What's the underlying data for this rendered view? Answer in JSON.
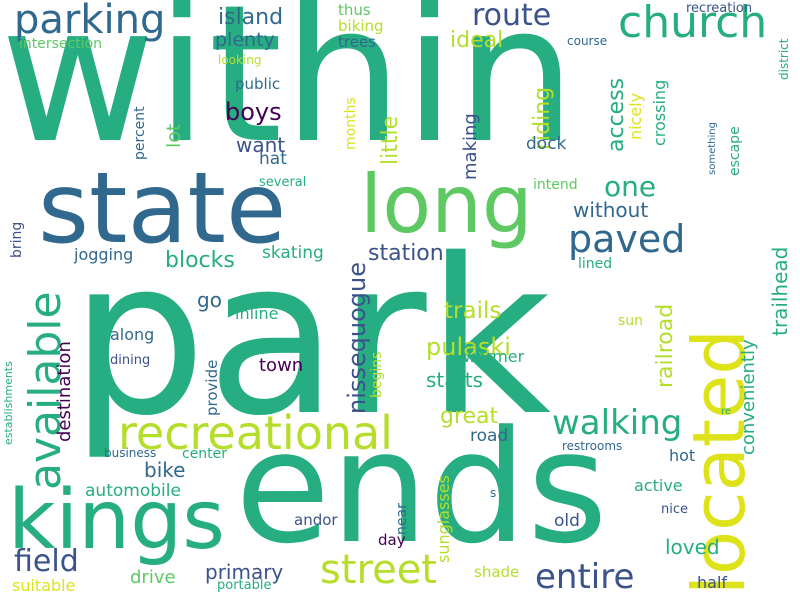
{
  "words": [
    {
      "text": "within",
      "color": "#26ad81"
    },
    {
      "text": "park",
      "color": "#26ad81"
    },
    {
      "text": "ends",
      "color": "#26ad81"
    },
    {
      "text": "state",
      "color": "#31688e"
    },
    {
      "text": "long",
      "color": "#5ec962"
    },
    {
      "text": "located",
      "color": "#dde318"
    },
    {
      "text": "kings",
      "color": "#26ad81"
    },
    {
      "text": "recreational",
      "color": "#b5de2b"
    },
    {
      "text": "street",
      "color": "#b5de2b"
    },
    {
      "text": "parking",
      "color": "#31688e"
    },
    {
      "text": "church",
      "color": "#26ad81"
    },
    {
      "text": "route",
      "color": "#3b528b"
    },
    {
      "text": "paved",
      "color": "#31688e"
    },
    {
      "text": "walking",
      "color": "#26ad81"
    },
    {
      "text": "available",
      "color": "#26ad81"
    },
    {
      "text": "entire",
      "color": "#3b528b"
    },
    {
      "text": "field",
      "color": "#3b528b"
    },
    {
      "text": "one",
      "color": "#26ad81"
    },
    {
      "text": "island",
      "color": "#31688e"
    },
    {
      "text": "plenty",
      "color": "#31688e"
    },
    {
      "text": "ideal",
      "color": "#b5de2b"
    },
    {
      "text": "intersection",
      "color": "#5ec962"
    },
    {
      "text": "thus",
      "color": "#5ec962"
    },
    {
      "text": "biking",
      "color": "#b5de2b"
    },
    {
      "text": "trees",
      "color": "#31688e"
    },
    {
      "text": "recreation",
      "color": "#3b528b"
    },
    {
      "text": "course",
      "color": "#31688e"
    },
    {
      "text": "looking",
      "color": "#b5de2b"
    },
    {
      "text": "district",
      "color": "#26ad81"
    },
    {
      "text": "public",
      "color": "#31688e"
    },
    {
      "text": "boys",
      "color": "#440154"
    },
    {
      "text": "want",
      "color": "#3b528b"
    },
    {
      "text": "hat",
      "color": "#31688e"
    },
    {
      "text": "several",
      "color": "#26ad81"
    },
    {
      "text": "riding",
      "color": "#b5de2b"
    },
    {
      "text": "little",
      "color": "#b5de2b"
    },
    {
      "text": "making",
      "color": "#3b528b"
    },
    {
      "text": "access",
      "color": "#26ad81"
    },
    {
      "text": "nicely",
      "color": "#dde318"
    },
    {
      "text": "crossing",
      "color": "#26ad81"
    },
    {
      "text": "dock",
      "color": "#31688e"
    },
    {
      "text": "intend",
      "color": "#5ec962"
    },
    {
      "text": "escape",
      "color": "#26ad81"
    },
    {
      "text": "something",
      "color": "#31688e"
    },
    {
      "text": "without",
      "color": "#31688e"
    },
    {
      "text": "blocks",
      "color": "#26ad81"
    },
    {
      "text": "skating",
      "color": "#26ad81"
    },
    {
      "text": "station",
      "color": "#3b528b"
    },
    {
      "text": "jogging",
      "color": "#31688e"
    },
    {
      "text": "lined",
      "color": "#26ad81"
    },
    {
      "text": "trailhead",
      "color": "#26ad81"
    },
    {
      "text": "conveniently",
      "color": "#26ad81"
    },
    {
      "text": "railroad",
      "color": "#b5de2b"
    },
    {
      "text": "trails",
      "color": "#b5de2b"
    },
    {
      "text": "pulaski",
      "color": "#b5de2b"
    },
    {
      "text": "nissequogue",
      "color": "#3b528b"
    },
    {
      "text": "starts",
      "color": "#26ad81"
    },
    {
      "text": "warmer",
      "color": "#26ad81"
    },
    {
      "text": "begins",
      "color": "#b5de2b"
    },
    {
      "text": "great",
      "color": "#b5de2b"
    },
    {
      "text": "road",
      "color": "#31688e"
    },
    {
      "text": "sun",
      "color": "#b5de2b"
    },
    {
      "text": "re",
      "color": "#26ad81"
    },
    {
      "text": "restrooms",
      "color": "#31688e"
    },
    {
      "text": "go",
      "color": "#31688e"
    },
    {
      "text": "inline",
      "color": "#26ad81"
    },
    {
      "text": "along",
      "color": "#31688e"
    },
    {
      "text": "town",
      "color": "#440154"
    },
    {
      "text": "provide",
      "color": "#31688e"
    },
    {
      "text": "dining",
      "color": "#3b528b"
    },
    {
      "text": "destination",
      "color": "#440154"
    },
    {
      "text": "percent",
      "color": "#31688e"
    },
    {
      "text": "lot",
      "color": "#5ec962"
    },
    {
      "text": "months",
      "color": "#dde318"
    },
    {
      "text": "bring",
      "color": "#3b528b"
    },
    {
      "text": "establishments",
      "color": "#26ad81"
    },
    {
      "text": "business",
      "color": "#31688e"
    },
    {
      "text": "center",
      "color": "#26ad81"
    },
    {
      "text": "bike",
      "color": "#31688e"
    },
    {
      "text": "automobile",
      "color": "#26ad81"
    },
    {
      "text": "hot",
      "color": "#31688e"
    },
    {
      "text": "active",
      "color": "#26ad81"
    },
    {
      "text": "s",
      "color": "#31688e"
    },
    {
      "text": "nice",
      "color": "#3b528b"
    },
    {
      "text": "sunglasses",
      "color": "#b5de2b"
    },
    {
      "text": "near",
      "color": "#31688e"
    },
    {
      "text": "old",
      "color": "#3b528b"
    },
    {
      "text": "loved",
      "color": "#26ad81"
    },
    {
      "text": "andor",
      "color": "#3b528b"
    },
    {
      "text": "day",
      "color": "#440154"
    },
    {
      "text": "primary",
      "color": "#3b528b"
    },
    {
      "text": "drive",
      "color": "#5ec962"
    },
    {
      "text": "shade",
      "color": "#b5de2b"
    },
    {
      "text": "half",
      "color": "#3b528b"
    },
    {
      "text": "suitable",
      "color": "#dde318"
    },
    {
      "text": "portable",
      "color": "#26ad81"
    }
  ]
}
